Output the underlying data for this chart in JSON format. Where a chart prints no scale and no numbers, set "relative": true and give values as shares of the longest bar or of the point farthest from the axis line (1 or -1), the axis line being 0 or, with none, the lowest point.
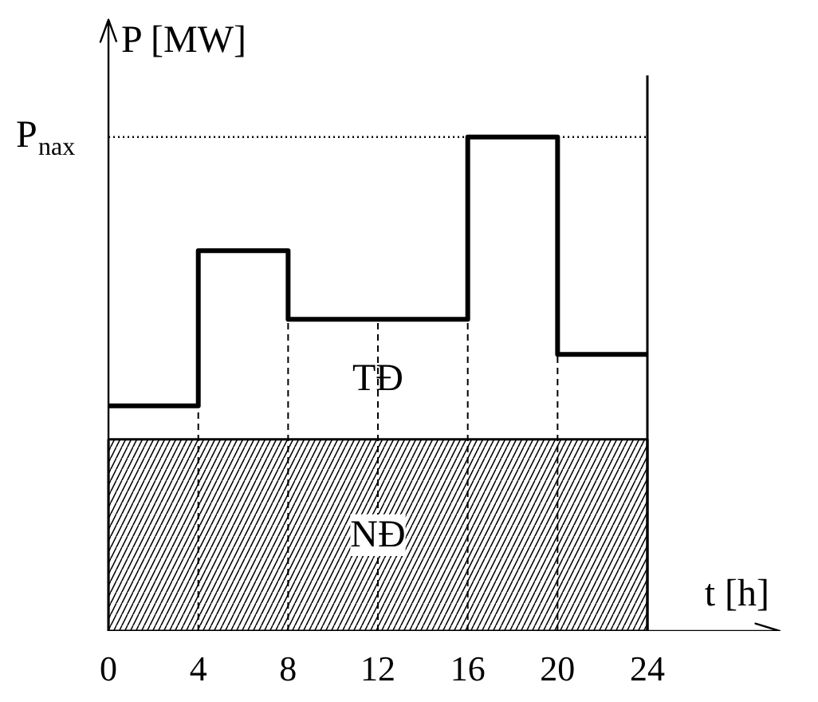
{
  "chart_data": {
    "type": "step",
    "relative": true,
    "xlabel": "t [h]",
    "ylabel": "P [MW]",
    "x": [
      0,
      4,
      8,
      16,
      20,
      24
    ],
    "series": [
      {
        "color": "#000000",
        "values": [
          0.456,
          0.77,
          0.631,
          1,
          0.56,
          0.56
        ]
      }
    ],
    "xlim": [
      0,
      30
    ],
    "xticks": [
      0,
      4,
      8,
      12,
      16,
      20,
      24
    ],
    "grid": false,
    "ref_lines": [
      {
        "axis": "y",
        "value": 1,
        "label": "P$_{nax}$",
        "line_style": "dotted",
        "color": "#000000"
      },
      {
        "axis": "x",
        "value": 4,
        "label": null,
        "line_style": "dashed",
        "color": "#000000"
      },
      {
        "axis": "x",
        "value": 8,
        "label": null,
        "line_style": "dashed",
        "color": "#000000"
      },
      {
        "axis": "x",
        "value": 12,
        "label": null,
        "line_style": "dashed",
        "color": "#000000"
      },
      {
        "axis": "x",
        "value": 16,
        "label": null,
        "line_style": "dashed",
        "color": "#000000"
      },
      {
        "axis": "x",
        "value": 20,
        "label": null,
        "line_style": "dashed",
        "color": "#000000"
      },
      {
        "axis": "x",
        "value": 24,
        "label": null,
        "line_style": "solid",
        "color": "#000000"
      }
    ],
    "bands": [
      {
        "axis": "y",
        "from": 0,
        "to": 0.388,
        "label": "NĐ",
        "color": "#000000"
      }
    ],
    "annotations": [
      {
        "text": "TĐ",
        "x": 12,
        "y": 0.51
      }
    ]
  }
}
